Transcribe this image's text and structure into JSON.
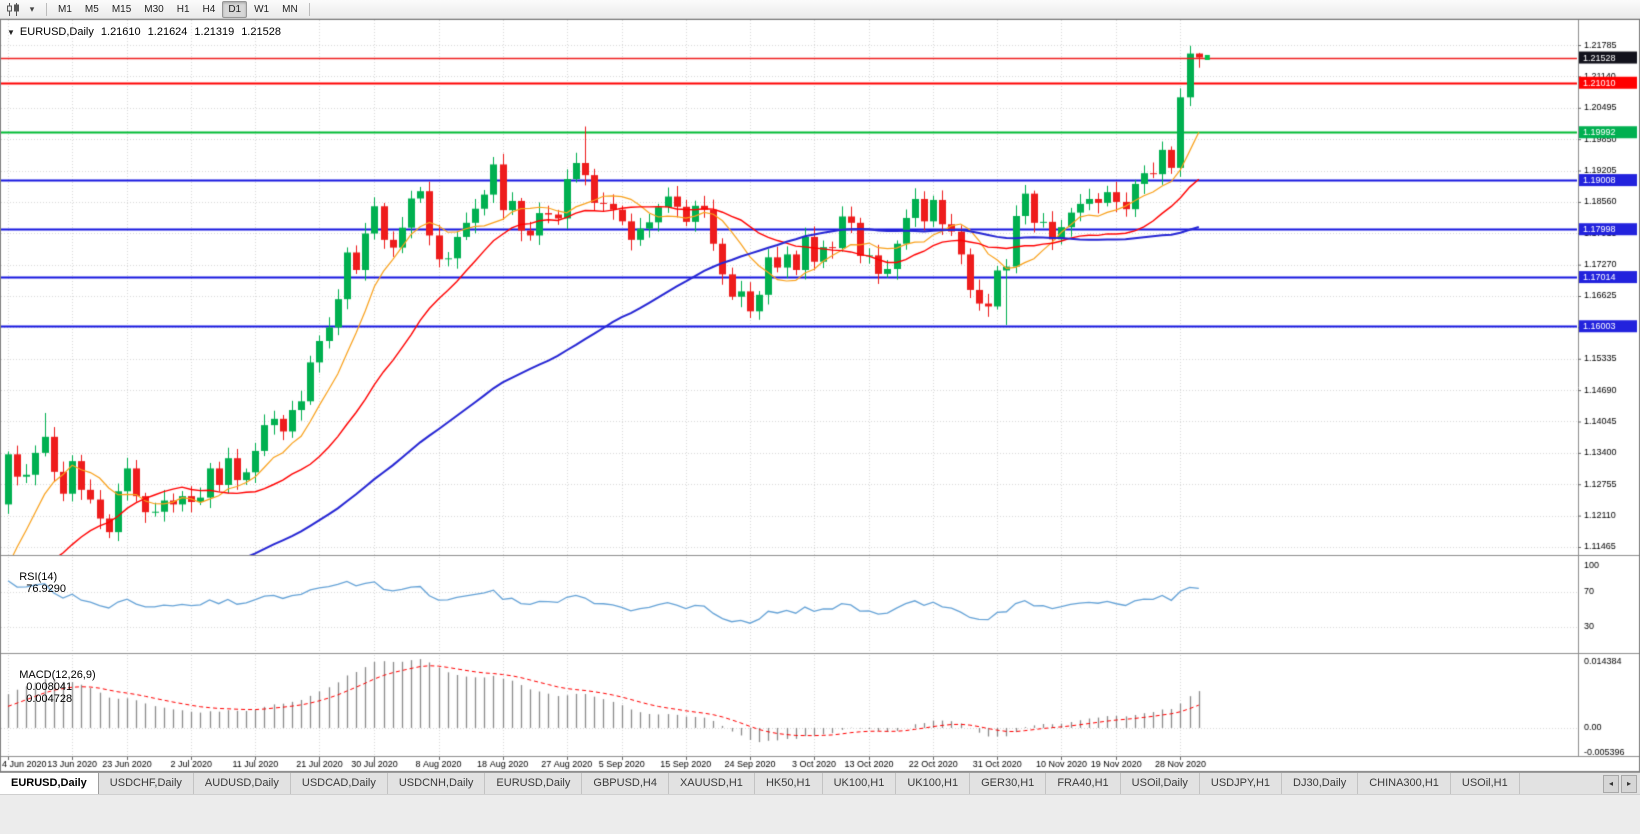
{
  "toolbar": {
    "chart_type_icon": "candlestick-chart",
    "dropdown_icon": "▾",
    "timeframes": [
      "M1",
      "M5",
      "M15",
      "M30",
      "H1",
      "H4",
      "D1",
      "W1",
      "MN"
    ],
    "active_timeframe": "D1"
  },
  "chart": {
    "collapse_icon": "▼",
    "symbol": "EURUSD,Daily",
    "open": "1.21610",
    "high": "1.21624",
    "low": "1.21319",
    "close": "1.21528"
  },
  "rsi": {
    "name": "RSI(14)",
    "value": "76.9290"
  },
  "macd": {
    "name": "MACD(12,26,9)",
    "value1": "0.008041",
    "value2": "0.004728"
  },
  "tabs": {
    "scroll_left_icon": "◂",
    "scroll_right_icon": "▸",
    "items": [
      {
        "label": "EURUSD,Daily",
        "active": true
      },
      {
        "label": "USDCHF,Daily",
        "active": false
      },
      {
        "label": "AUDUSD,Daily",
        "active": false
      },
      {
        "label": "USDCAD,Daily",
        "active": false
      },
      {
        "label": "USDCNH,Daily",
        "active": false
      },
      {
        "label": "EURUSD,Daily",
        "active": false
      },
      {
        "label": "GBPUSD,H4",
        "active": false
      },
      {
        "label": "XAUUSD,H1",
        "active": false
      },
      {
        "label": "HK50,H1",
        "active": false
      },
      {
        "label": "UK100,H1",
        "active": false
      },
      {
        "label": "UK100,H1",
        "active": false
      },
      {
        "label": "GER30,H1",
        "active": false
      },
      {
        "label": "FRA40,H1",
        "active": false
      },
      {
        "label": "USOil,Daily",
        "active": false
      },
      {
        "label": "USDJPY,H1",
        "active": false
      },
      {
        "label": "DJ30,Daily",
        "active": false
      },
      {
        "label": "CHINA300,H1",
        "active": false
      },
      {
        "label": "USOil,H1",
        "active": false
      }
    ]
  },
  "chart_data": {
    "type": "candlestick",
    "title": "EURUSD,Daily",
    "timeframe": "D1",
    "price_axis_ticks": [
      "1.21785",
      "1.21140",
      "1.20495",
      "1.19850",
      "1.19205",
      "1.18560",
      "1.17915",
      "1.17270",
      "1.16625",
      "1.15980",
      "1.15335",
      "1.14690",
      "1.14045",
      "1.13400",
      "1.12755",
      "1.12110",
      "1.11465"
    ],
    "price_range": {
      "top": 1.223,
      "bottom": 1.113
    },
    "date_labels": [
      "4 Jun 2020",
      "13 Jun 2020",
      "23 Jun 2020",
      "2 Jul 2020",
      "11 Jul 2020",
      "21 Jul 2020",
      "30 Jul 2020",
      "8 Aug 2020",
      "18 Aug 2020",
      "27 Aug 2020",
      "5 Sep 2020",
      "15 Sep 2020",
      "24 Sep 2020",
      "3 Oct 2020",
      "13 Oct 2020",
      "22 Oct 2020",
      "31 Oct 2020",
      "10 Nov 2020",
      "19 Nov 2020",
      "28 Nov 2020"
    ],
    "first_open": 1.1234,
    "closes": [
      1.1337,
      1.1291,
      1.1295,
      1.134,
      1.1373,
      1.1301,
      1.1256,
      1.1323,
      1.1264,
      1.1244,
      1.1205,
      1.1177,
      1.1261,
      1.1308,
      1.1251,
      1.1218,
      1.1219,
      1.1242,
      1.1234,
      1.1251,
      1.1239,
      1.1248,
      1.1308,
      1.1274,
      1.1329,
      1.1284,
      1.13,
      1.1344,
      1.1397,
      1.141,
      1.1384,
      1.1428,
      1.1446,
      1.1526,
      1.157,
      1.1598,
      1.1656,
      1.1752,
      1.1716,
      1.1791,
      1.1847,
      1.1778,
      1.1762,
      1.1803,
      1.1863,
      1.1878,
      1.1787,
      1.1738,
      1.174,
      1.1784,
      1.1813,
      1.1842,
      1.1871,
      1.1933,
      1.1839,
      1.1858,
      1.1797,
      1.1787,
      1.1833,
      1.183,
      1.1822,
      1.1903,
      1.1936,
      1.1911,
      1.1854,
      1.1852,
      1.184,
      1.1816,
      1.1778,
      1.1801,
      1.1814,
      1.1845,
      1.1867,
      1.1846,
      1.1815,
      1.1848,
      1.184,
      1.177,
      1.1707,
      1.1661,
      1.1672,
      1.1631,
      1.1665,
      1.1742,
      1.1721,
      1.1748,
      1.1716,
      1.1784,
      1.1733,
      1.1763,
      1.1761,
      1.1826,
      1.1813,
      1.1745,
      1.1746,
      1.1708,
      1.1718,
      1.177,
      1.1823,
      1.1862,
      1.1816,
      1.186,
      1.181,
      1.1795,
      1.1748,
      1.1675,
      1.1647,
      1.1641,
      1.1715,
      1.1723,
      1.1827,
      1.1873,
      1.1813,
      1.1815,
      1.1779,
      1.1804,
      1.1834,
      1.1852,
      1.1862,
      1.1854,
      1.1876,
      1.1856,
      1.1841,
      1.1893,
      1.1915,
      1.1913,
      1.1963,
      1.1926,
      1.2071,
      1.2161,
      1.21528
    ],
    "pre_history_closes": [
      1.0805,
      1.0792,
      1.081,
      1.0831,
      1.0847,
      1.0865,
      1.0842,
      1.0826,
      1.0853,
      1.0879,
      1.0861,
      1.0838,
      1.0858,
      1.0884,
      1.0902,
      1.0878,
      1.0856,
      1.0871,
      1.0895,
      1.0912,
      1.0889,
      1.0868,
      1.089,
      1.0915,
      1.0936,
      1.0908,
      1.0884,
      1.0902,
      1.0927,
      1.0947,
      1.0921,
      1.0899,
      1.0923,
      1.0951,
      1.0972,
      1.0948,
      1.0925,
      1.095,
      1.0978,
      1.1002,
      1.0976,
      1.0953,
      1.098,
      1.1009,
      1.1034,
      1.1008,
      1.0985,
      1.1014,
      1.1046,
      1.1078,
      1.1101,
      1.1134,
      1.117
    ],
    "wick_overrides": {
      "4": {
        "high": 1.1422
      },
      "63": {
        "high": 1.2011
      },
      "109": {
        "low": 1.1603
      },
      "129": {
        "high": 1.2177,
        "low": 1.2053
      },
      "130": {
        "open": 1.2161,
        "high": 1.21624,
        "low": 1.21319,
        "close": 1.21528
      }
    },
    "moving_averages": [
      {
        "period": 8,
        "color": "#f9a11b",
        "width": 1.2
      },
      {
        "period": 20,
        "color": "#ff0000",
        "width": 1.4
      },
      {
        "period": 55,
        "color": "#2626d4",
        "width": 2
      }
    ],
    "price_lines": [
      {
        "text": "1.21528",
        "price": 1.21528,
        "line_color": "#f02020",
        "label_bg": "#12121c",
        "width": 1.5,
        "style": "bid"
      },
      {
        "text": "1.21010",
        "price": 1.2101,
        "line_color": "#ff0000",
        "label_bg": "#ff0000",
        "width": 2,
        "style": "solid"
      },
      {
        "text": "1.19992",
        "price": 1.19992,
        "line_color": "#00bb33",
        "label_bg": "#00b050",
        "width": 2,
        "style": "solid"
      },
      {
        "text": "1.19008",
        "price": 1.19008,
        "line_color": "#1414e0",
        "label_bg": "#2222dd",
        "width": 2,
        "style": "solid"
      },
      {
        "text": "1.17998",
        "price": 1.17998,
        "line_color": "#1414e0",
        "label_bg": "#2222dd",
        "width": 2,
        "style": "solid"
      },
      {
        "text": "1.17014",
        "price": 1.17014,
        "line_color": "#1414e0",
        "label_bg": "#2222dd",
        "width": 2,
        "style": "solid"
      },
      {
        "text": "1.16003",
        "price": 1.16003,
        "line_color": "#1414e0",
        "label_bg": "#2222dd",
        "width": 2,
        "style": "solid"
      }
    ],
    "last_marker": {
      "price": 1.2154,
      "color": "#00c24a"
    },
    "rsi": {
      "period": 14,
      "levels": [
        70,
        30
      ],
      "axis_labels": [
        {
          "text": "100",
          "value": 100
        },
        {
          "text": "70",
          "value": 70
        },
        {
          "text": "30",
          "value": 30
        }
      ],
      "line_color": "#66a3d7"
    },
    "macd": {
      "fast": 12,
      "slow": 26,
      "signal": 9,
      "axis_labels": [
        {
          "text": "0.014384",
          "value": 0.014384
        },
        {
          "text": "0.00",
          "value": 0
        },
        {
          "text": "-0.005396",
          "value": -0.005396
        }
      ],
      "hist_color": "#8c8c8c",
      "signal_color": "#ff0000"
    },
    "colors": {
      "background": "#ffffff",
      "grid": "#d8d8d8",
      "border": "#7f7f7f",
      "bull": "#00b050",
      "bear": "#ee1c1c",
      "axis_text": "#000000"
    }
  }
}
